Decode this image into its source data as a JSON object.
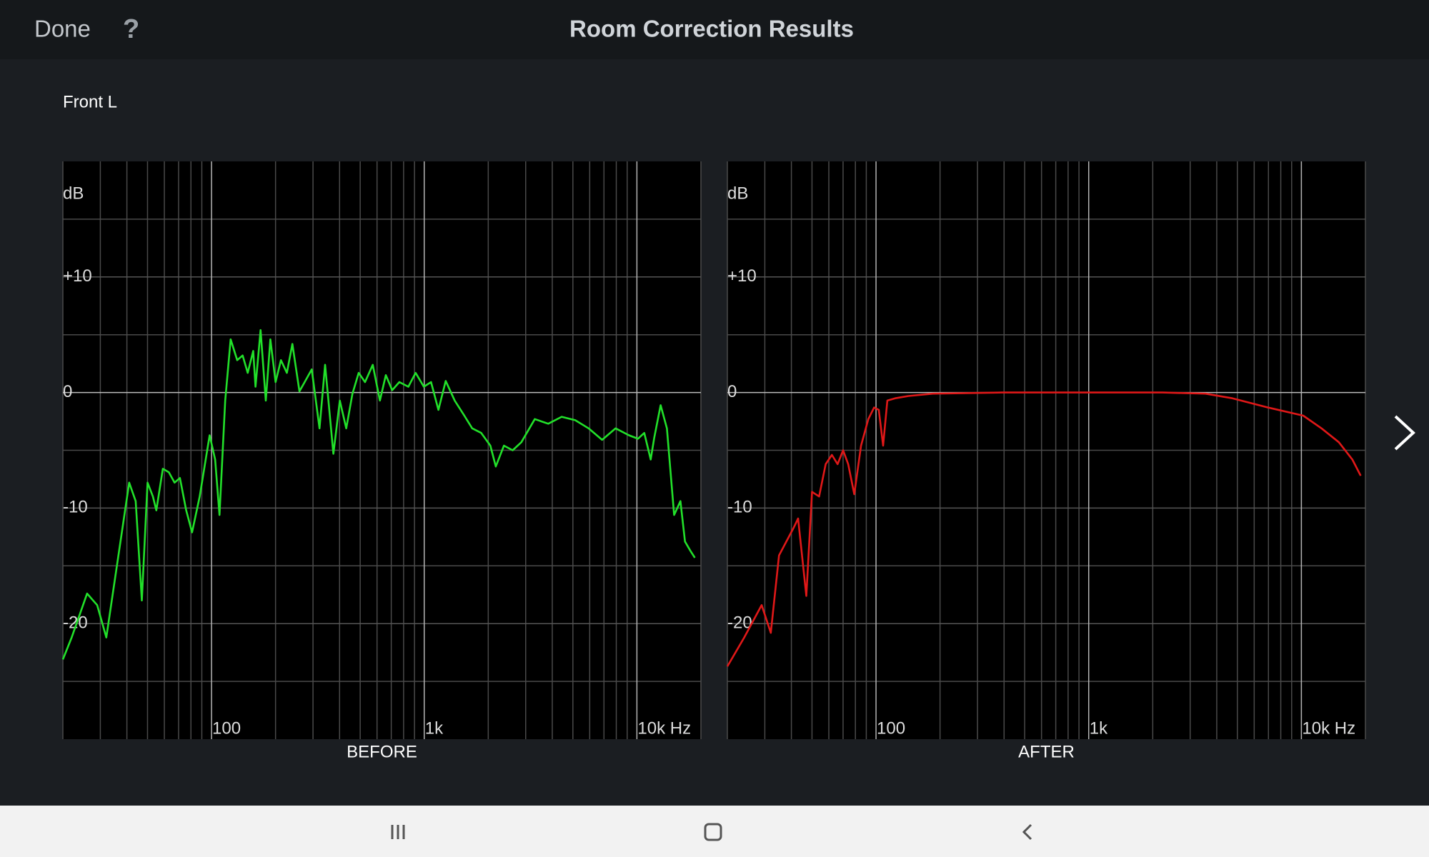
{
  "header": {
    "done": "Done",
    "help": "?",
    "title": "Room Correction Results"
  },
  "channel": "Front L",
  "chart_data": [
    {
      "type": "line",
      "xlabel": "BEFORE",
      "ylabel": "dB",
      "x_log": true,
      "grid": true,
      "xlim": [
        20,
        20000
      ],
      "ylim": [
        -30,
        20
      ],
      "xticks": [
        100,
        {
          "value": 1000,
          "label": "1k"
        },
        {
          "value": 10000,
          "label": "10k Hz"
        }
      ],
      "yticks": [
        {
          "value": 10,
          "label": "+10"
        },
        0,
        -10,
        -20
      ],
      "xminor": [
        20,
        30,
        40,
        50,
        60,
        70,
        80,
        90,
        200,
        300,
        400,
        500,
        600,
        700,
        800,
        900,
        2000,
        3000,
        4000,
        5000,
        6000,
        7000,
        8000,
        9000,
        20000
      ],
      "yminor": [
        -25,
        -15,
        -5,
        5,
        15
      ],
      "series": [
        {
          "color": "#22e02a",
          "x": [
            20,
            22,
            26,
            29,
            32,
            41,
            44,
            47,
            50,
            53,
            55,
            59,
            63,
            67,
            71,
            76,
            81,
            88,
            98,
            104,
            109,
            116,
            123,
            132,
            140,
            148,
            157,
            161,
            170,
            180,
            189,
            200,
            212,
            226,
            240,
            259,
            274,
            296,
            322,
            342,
            374,
            401,
            430,
            460,
            492,
            527,
            573,
            619,
            660,
            707,
            764,
            842,
            911,
            996,
            1077,
            1166,
            1262,
            1391,
            1531,
            1682,
            1854,
            2046,
            2170,
            2371,
            2605,
            2862,
            3310,
            3830,
            4430,
            5130,
            5930,
            6860,
            7940,
            9180,
            10120,
            10830,
            11610,
            12070,
            12930,
            13840,
            14960,
            16020,
            16830,
            17850,
            18730
          ],
          "values": [
            -23.1,
            -21.2,
            -17.4,
            -18.4,
            -21.2,
            -7.8,
            -9.4,
            -18.0,
            -7.8,
            -9.0,
            -10.2,
            -6.6,
            -6.9,
            -7.8,
            -7.4,
            -10.2,
            -12.1,
            -9.0,
            -3.7,
            -5.8,
            -10.6,
            -0.7,
            4.6,
            2.8,
            3.2,
            1.7,
            3.6,
            0.5,
            5.4,
            -0.7,
            4.6,
            0.9,
            2.8,
            1.7,
            4.2,
            0.1,
            0.9,
            2.0,
            -3.1,
            2.4,
            -5.3,
            -0.7,
            -3.1,
            -0.1,
            1.7,
            0.9,
            2.4,
            -0.7,
            1.5,
            0.2,
            0.9,
            0.5,
            1.7,
            0.5,
            0.9,
            -1.5,
            1.0,
            -0.7,
            -1.9,
            -3.1,
            -3.5,
            -4.6,
            -6.4,
            -4.6,
            -5.0,
            -4.3,
            -2.3,
            -2.7,
            -2.1,
            -2.4,
            -3.1,
            -4.1,
            -3.1,
            -3.7,
            -4.0,
            -3.5,
            -5.8,
            -3.9,
            -1.1,
            -3.1,
            -10.6,
            -9.4,
            -12.9,
            -13.7,
            -14.3
          ]
        }
      ]
    },
    {
      "type": "line",
      "xlabel": "AFTER",
      "ylabel": "dB",
      "x_log": true,
      "grid": true,
      "xlim": [
        20,
        20000
      ],
      "ylim": [
        -30,
        20
      ],
      "xticks": [
        100,
        {
          "value": 1000,
          "label": "1k"
        },
        {
          "value": 10000,
          "label": "10k Hz"
        }
      ],
      "yticks": [
        {
          "value": 10,
          "label": "+10"
        },
        0,
        -10,
        -20
      ],
      "xminor": [
        20,
        30,
        40,
        50,
        60,
        70,
        80,
        90,
        200,
        300,
        400,
        500,
        600,
        700,
        800,
        900,
        2000,
        3000,
        4000,
        5000,
        6000,
        7000,
        8000,
        9000,
        20000
      ],
      "yminor": [
        -25,
        -15,
        -5,
        5,
        15
      ],
      "series": [
        {
          "color": "#e01818",
          "x": [
            20,
            24,
            29,
            32,
            35,
            41,
            43,
            47,
            50,
            54,
            58,
            62,
            66,
            70,
            74,
            79,
            85,
            92,
            98,
            103,
            108,
            113,
            123,
            142,
            185,
            390,
            1040,
            2225,
            3540,
            4740,
            6970,
            10200,
            12440,
            15000,
            17360,
            19000
          ],
          "values": [
            -23.7,
            -21.2,
            -18.4,
            -20.8,
            -14.1,
            -11.7,
            -10.9,
            -17.6,
            -8.6,
            -9.0,
            -6.2,
            -5.4,
            -6.2,
            -5.0,
            -6.2,
            -8.8,
            -4.6,
            -2.3,
            -1.3,
            -1.5,
            -4.6,
            -0.7,
            -0.5,
            -0.3,
            -0.1,
            0,
            0,
            0,
            -0.1,
            -0.5,
            -1.3,
            -2.0,
            -3.1,
            -4.3,
            -5.8,
            -7.2
          ]
        }
      ]
    }
  ]
}
